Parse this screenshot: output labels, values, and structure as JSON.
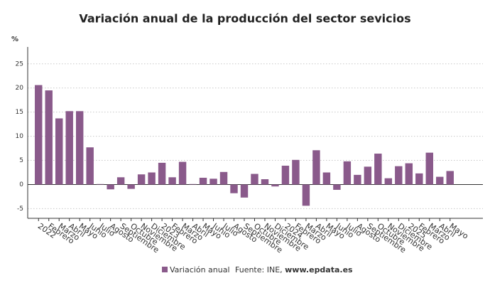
{
  "chart_data": {
    "type": "bar",
    "title": "Variación anual de la producción del sector sevicios",
    "y_label": "%",
    "source_prefix": "Fuente: INE,",
    "source_site": "www.epdata.es",
    "categories": [
      "2022",
      "Febrero",
      "Marzo",
      "Abril",
      "Mayo",
      "Junio",
      "Julio",
      "Agosto",
      "Septiembre",
      "Octubre",
      "Noviembre",
      "Diciembre",
      "2023",
      "Febrero",
      "Marzo",
      "Abril",
      "Mayo",
      "Junio",
      "Julio",
      "Agosto",
      "Septiembre",
      "Octubre",
      "Noviembre",
      "Diciembre",
      "2024",
      "Febrero",
      "Marzo",
      "Abril",
      "Mayo",
      "Junio",
      "Julio",
      "Agosto",
      "Septiembre",
      "Octubre",
      "Noviembre",
      "Diciembre",
      "2025",
      "Febrero",
      "Marzo",
      "Abril",
      "Mayo"
    ],
    "series": [
      {
        "name": "Variación anual",
        "color": "#8a5a8b",
        "values": [
          20.6,
          19.5,
          13.7,
          15.2,
          15.2,
          7.7,
          0.1,
          -1.0,
          1.5,
          -0.9,
          2.1,
          2.5,
          4.5,
          1.5,
          4.7,
          0.1,
          1.4,
          1.2,
          2.6,
          -1.8,
          -2.7,
          2.2,
          1.1,
          -0.4,
          3.9,
          5.1,
          -4.4,
          7.1,
          2.5,
          -1.1,
          4.8,
          2.0,
          3.7,
          6.4,
          1.3,
          3.8,
          4.4,
          2.3,
          6.6,
          1.6,
          2.8
        ]
      }
    ],
    "ylim": [
      -7,
      28.5
    ],
    "yticks": [
      -5,
      0,
      5,
      10,
      15,
      20,
      25
    ],
    "grid": true
  }
}
